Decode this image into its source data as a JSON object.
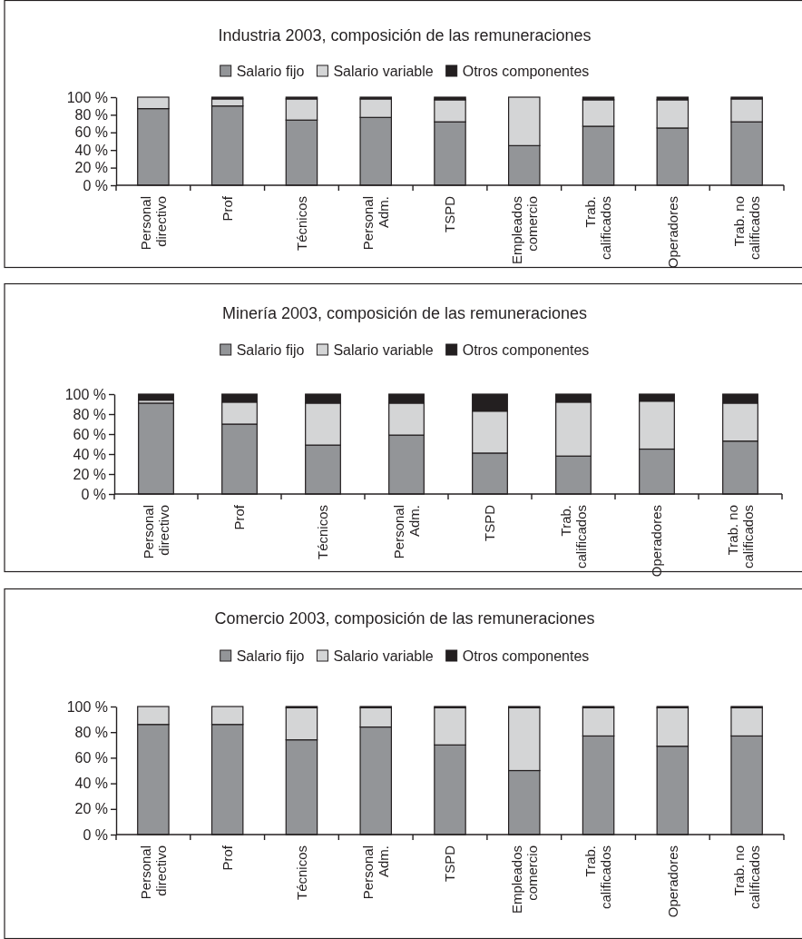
{
  "chart_data": [
    {
      "type": "bar",
      "title": "Industria 2003, composición de las remuneraciones",
      "stacked": true,
      "legend": "top",
      "categories": [
        "Personal directivo",
        "Prof",
        "Técnicos",
        "Personal Adm.",
        "TSPD",
        "Empleados comercio",
        "Trab. calificados",
        "Operadores",
        "Trab. no calificados"
      ],
      "ylim": [
        0,
        100
      ],
      "yticks": [
        {
          "value": 0,
          "label": "0 %"
        },
        {
          "value": 20,
          "label": "20 %"
        },
        {
          "value": 40,
          "label": "40 %"
        },
        {
          "value": 60,
          "label": "60 %"
        },
        {
          "value": 80,
          "label": "80 %"
        },
        {
          "value": 100,
          "label": "100 %"
        }
      ],
      "series": [
        {
          "name": "Salario fijo",
          "color": "#939598",
          "values": [
            87,
            90,
            74,
            77,
            72,
            45,
            67,
            65,
            72
          ]
        },
        {
          "name": "Salario variable",
          "color": "#d4d5d6",
          "values": [
            13,
            8,
            24,
            21,
            25,
            55,
            30,
            32,
            26
          ]
        },
        {
          "name": "Otros componentes",
          "color": "#231f20",
          "values": [
            0,
            2,
            2,
            2,
            3,
            0,
            3,
            3,
            2
          ]
        }
      ]
    },
    {
      "type": "bar",
      "title": "Minería 2003, composición de las remuneraciones",
      "stacked": true,
      "legend": "top",
      "categories": [
        "Personal directivo",
        "Prof",
        "Técnicos",
        "Personal Adm.",
        "TSPD",
        "Trab. calificados",
        "Operadores",
        "Trab. no calificados"
      ],
      "ylim": [
        0,
        100
      ],
      "yticks": [
        {
          "value": 0,
          "label": "0 %"
        },
        {
          "value": 20,
          "label": "20 %"
        },
        {
          "value": 40,
          "label": "40 %"
        },
        {
          "value": 60,
          "label": "60 %"
        },
        {
          "value": 80,
          "label": "80 %"
        },
        {
          "value": 100,
          "label": "100 %"
        }
      ],
      "series": [
        {
          "name": "Salario fijo",
          "color": "#939598",
          "values": [
            91,
            70,
            49,
            59,
            41,
            38,
            45,
            53
          ]
        },
        {
          "name": "Salario variable",
          "color": "#d4d5d6",
          "values": [
            3,
            22,
            42,
            32,
            42,
            54,
            48,
            38
          ]
        },
        {
          "name": "Otros componentes",
          "color": "#231f20",
          "values": [
            6,
            8,
            9,
            9,
            17,
            8,
            7,
            9
          ]
        }
      ]
    },
    {
      "type": "bar",
      "title": "Comercio 2003, composición de las remuneraciones",
      "stacked": true,
      "legend": "top",
      "categories": [
        "Personal directivo",
        "Prof",
        "Técnicos",
        "Personal Adm.",
        "TSPD",
        "Empleados comercio",
        "Trab. calificados",
        "Operadores",
        "Trab. no calificados"
      ],
      "ylim": [
        0,
        100
      ],
      "yticks": [
        {
          "value": 0,
          "label": "0 %"
        },
        {
          "value": 20,
          "label": "20 %"
        },
        {
          "value": 40,
          "label": "40 %"
        },
        {
          "value": 60,
          "label": "60 %"
        },
        {
          "value": 80,
          "label": "80 %"
        },
        {
          "value": 100,
          "label": "100 %"
        }
      ],
      "series": [
        {
          "name": "Salario fijo",
          "color": "#939598",
          "values": [
            86,
            86,
            74,
            84,
            70,
            50,
            77,
            69,
            77
          ]
        },
        {
          "name": "Salario variable",
          "color": "#d4d5d6",
          "values": [
            14,
            14,
            25,
            15,
            29,
            49,
            22,
            30,
            22
          ]
        },
        {
          "name": "Otros componentes",
          "color": "#231f20",
          "values": [
            0,
            0,
            1,
            1,
            1,
            1,
            1,
            1,
            1
          ]
        }
      ]
    }
  ]
}
